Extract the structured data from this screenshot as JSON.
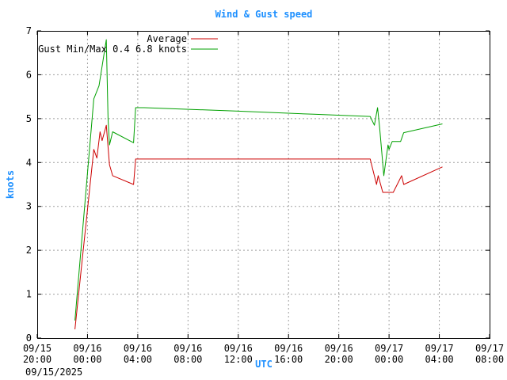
{
  "chart_data": {
    "type": "line",
    "title": "Wind & Gust speed",
    "xlabel": "UTC",
    "ylabel": "knots",
    "date_label": "09/15/2025",
    "ylim": [
      0,
      7
    ],
    "y_ticks": [
      "0",
      "1",
      "2",
      "3",
      "4",
      "5",
      "6",
      "7"
    ],
    "x_range": [
      "2025-09-15 20:00",
      "2025-09-17 08:00"
    ],
    "x_ticks": [
      {
        "date": "09/15",
        "time": "20:00"
      },
      {
        "date": "09/16",
        "time": "00:00"
      },
      {
        "date": "09/16",
        "time": "04:00"
      },
      {
        "date": "09/16",
        "time": "08:00"
      },
      {
        "date": "09/16",
        "time": "12:00"
      },
      {
        "date": "09/16",
        "time": "16:00"
      },
      {
        "date": "09/16",
        "time": "20:00"
      },
      {
        "date": "09/17",
        "time": "00:00"
      },
      {
        "date": "09/17",
        "time": "04:00"
      },
      {
        "date": "09/17",
        "time": "08:00"
      }
    ],
    "grid": true,
    "legend_position": "top-left",
    "series": [
      {
        "name": "Average",
        "color": "#cc0000",
        "points": [
          [
            "2025-09-15 23:00",
            0.2
          ],
          [
            "2025-09-16 00:30",
            4.3
          ],
          [
            "2025-09-16 00:45",
            4.1
          ],
          [
            "2025-09-16 01:00",
            4.7
          ],
          [
            "2025-09-16 01:10",
            4.5
          ],
          [
            "2025-09-16 01:30",
            4.85
          ],
          [
            "2025-09-16 01:45",
            3.95
          ],
          [
            "2025-09-16 02:00",
            3.7
          ],
          [
            "2025-09-16 03:40",
            3.5
          ],
          [
            "2025-09-16 03:50",
            4.08
          ],
          [
            "2025-09-16 22:30",
            4.08
          ],
          [
            "2025-09-16 23:00",
            3.5
          ],
          [
            "2025-09-16 23:08",
            3.7
          ],
          [
            "2025-09-16 23:30",
            3.32
          ],
          [
            "2025-09-17 00:20",
            3.32
          ],
          [
            "2025-09-17 01:00",
            3.7
          ],
          [
            "2025-09-17 01:10",
            3.5
          ],
          [
            "2025-09-17 04:15",
            3.9
          ]
        ]
      },
      {
        "name": "Gust Min/Max 0.4 6.8 knots",
        "color": "#00a000",
        "points": [
          [
            "2025-09-15 23:00",
            0.4
          ],
          [
            "2025-09-16 00:30",
            5.45
          ],
          [
            "2025-09-16 00:55",
            5.75
          ],
          [
            "2025-09-16 01:30",
            6.8
          ],
          [
            "2025-09-16 01:38",
            5.0
          ],
          [
            "2025-09-16 01:45",
            4.4
          ],
          [
            "2025-09-16 02:00",
            4.7
          ],
          [
            "2025-09-16 03:40",
            4.45
          ],
          [
            "2025-09-16 03:50",
            5.25
          ],
          [
            "2025-09-16 04:30",
            5.25
          ],
          [
            "2025-09-16 12:00",
            5.17
          ],
          [
            "2025-09-16 18:00",
            5.1
          ],
          [
            "2025-09-16 22:30",
            5.05
          ],
          [
            "2025-09-16 22:50",
            4.85
          ],
          [
            "2025-09-16 23:05",
            5.25
          ],
          [
            "2025-09-16 23:15",
            4.8
          ],
          [
            "2025-09-16 23:35",
            3.7
          ],
          [
            "2025-09-16 23:55",
            4.4
          ],
          [
            "2025-09-17 00:00",
            4.3
          ],
          [
            "2025-09-17 00:15",
            4.48
          ],
          [
            "2025-09-17 00:55",
            4.48
          ],
          [
            "2025-09-17 01:10",
            4.68
          ],
          [
            "2025-09-17 04:15",
            4.88
          ]
        ]
      }
    ]
  }
}
